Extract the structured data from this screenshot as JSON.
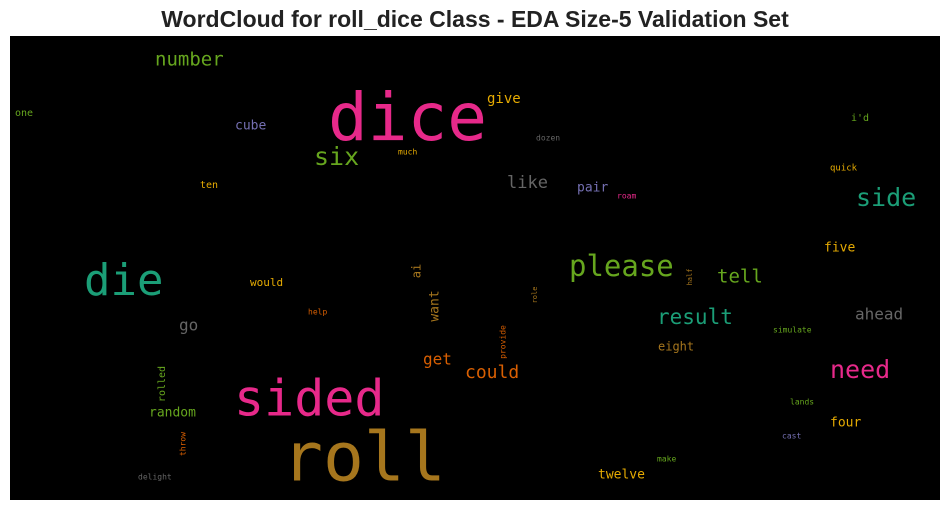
{
  "chart_data": {
    "type": "wordcloud",
    "title": "WordCloud for roll_dice Class - EDA Size-5 Validation Set",
    "background": "#000000",
    "words": [
      {
        "text": "dice",
        "color": "#e7298a"
      },
      {
        "text": "roll",
        "color": "#a6761d"
      },
      {
        "text": "sided",
        "color": "#e7298a"
      },
      {
        "text": "die",
        "color": "#1b9e77"
      },
      {
        "text": "please",
        "color": "#66a61e"
      },
      {
        "text": "six",
        "color": "#66a61e"
      },
      {
        "text": "side",
        "color": "#1b9e77"
      },
      {
        "text": "need",
        "color": "#e7298a"
      },
      {
        "text": "result",
        "color": "#1b9e77"
      },
      {
        "text": "number",
        "color": "#66a61e"
      },
      {
        "text": "tell",
        "color": "#66a61e"
      },
      {
        "text": "could",
        "color": "#d95f02"
      },
      {
        "text": "like",
        "color": "#666666"
      },
      {
        "text": "ahead",
        "color": "#666666"
      },
      {
        "text": "go",
        "color": "#666666"
      },
      {
        "text": "get",
        "color": "#d95f02"
      },
      {
        "text": "give",
        "color": "#e6ab02"
      },
      {
        "text": "five",
        "color": "#e6ab02"
      },
      {
        "text": "cube",
        "color": "#7570b3"
      },
      {
        "text": "pair",
        "color": "#7570b3"
      },
      {
        "text": "twelve",
        "color": "#e6ab02"
      },
      {
        "text": "random",
        "color": "#66a61e"
      },
      {
        "text": "four",
        "color": "#e6ab02"
      },
      {
        "text": "eight",
        "color": "#a6761d"
      },
      {
        "text": "would",
        "color": "#e6ab02"
      },
      {
        "text": "ten",
        "color": "#e6ab02"
      },
      {
        "text": "one",
        "color": "#66a61e"
      },
      {
        "text": "i'd",
        "color": "#66a61e"
      },
      {
        "text": "quick",
        "color": "#e6ab02"
      },
      {
        "text": "dozen",
        "color": "#666666"
      },
      {
        "text": "much",
        "color": "#e6ab02"
      },
      {
        "text": "roam",
        "color": "#e7298a"
      },
      {
        "text": "help",
        "color": "#d95f02"
      },
      {
        "text": "simulate",
        "color": "#66a61e"
      },
      {
        "text": "lands",
        "color": "#66a61e"
      },
      {
        "text": "cast",
        "color": "#7570b3"
      },
      {
        "text": "make",
        "color": "#66a61e"
      },
      {
        "text": "delight",
        "color": "#666666"
      },
      {
        "text": "ai",
        "color": "#a6761d"
      },
      {
        "text": "want",
        "color": "#a6761d"
      },
      {
        "text": "rolled",
        "color": "#66a61e"
      },
      {
        "text": "throw",
        "color": "#d95f02"
      },
      {
        "text": "provide",
        "color": "#d95f02"
      },
      {
        "text": "role",
        "color": "#a6761d"
      },
      {
        "text": "half",
        "color": "#a6761d"
      }
    ]
  }
}
